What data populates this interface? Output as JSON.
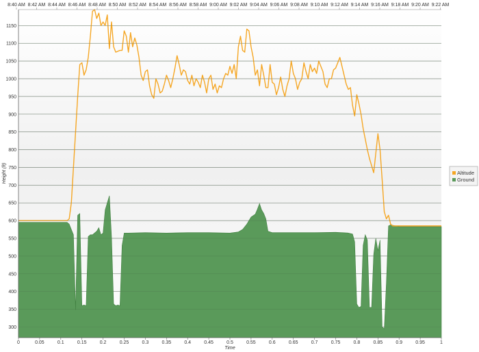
{
  "chart_data": {
    "type": "area",
    "xlabel": "Time",
    "ylabel": "Height (ft)",
    "xlim": [
      0,
      1
    ],
    "ylim": [
      270,
      1195
    ],
    "x_ticks": [
      0,
      0.05,
      0.1,
      0.15,
      0.2,
      0.25,
      0.3,
      0.35,
      0.4,
      0.45,
      0.5,
      0.55,
      0.6,
      0.65,
      0.7,
      0.75,
      0.8,
      0.85,
      0.9,
      0.95,
      1
    ],
    "x_tick_labels": [
      "0",
      "0.05",
      "0.1",
      "0.15",
      "0.2",
      "0.25",
      "0.3",
      "0.35",
      "0.4",
      "0.45",
      "0.5",
      "0.55",
      "0.6",
      "0.65",
      "0.7",
      "0.75",
      "0.8",
      "0.85",
      "0.9",
      "0.95",
      "1"
    ],
    "y_ticks": [
      300,
      350,
      400,
      450,
      500,
      550,
      600,
      650,
      700,
      750,
      800,
      850,
      900,
      950,
      1000,
      1050,
      1100,
      1150
    ],
    "top_axis_labels": [
      "8:40 AM",
      "8:42 AM",
      "8:44 AM",
      "8:46 AM",
      "8:48 AM",
      "8:50 AM",
      "8:52 AM",
      "8:54 AM",
      "8:56 AM",
      "8:58 AM",
      "9:00 AM",
      "9:02 AM",
      "9:04 AM",
      "9:06 AM",
      "9:08 AM",
      "9:10 AM",
      "9:12 AM",
      "9:14 AM",
      "9:16 AM",
      "9:18 AM",
      "9:20 AM",
      "9:22 AM"
    ],
    "grid": true,
    "legend_position": "right",
    "series": [
      {
        "name": "Altitude",
        "kind": "line",
        "color": "#f5a623",
        "points": [
          [
            0,
            600
          ],
          [
            0.115,
            600
          ],
          [
            0.12,
            605
          ],
          [
            0.125,
            650
          ],
          [
            0.13,
            750
          ],
          [
            0.135,
            850
          ],
          [
            0.14,
            950
          ],
          [
            0.145,
            1040
          ],
          [
            0.15,
            1045
          ],
          [
            0.155,
            1010
          ],
          [
            0.16,
            1025
          ],
          [
            0.165,
            1060
          ],
          [
            0.17,
            1120
          ],
          [
            0.175,
            1190
          ],
          [
            0.18,
            1195
          ],
          [
            0.185,
            1170
          ],
          [
            0.19,
            1185
          ],
          [
            0.195,
            1150
          ],
          [
            0.2,
            1160
          ],
          [
            0.205,
            1150
          ],
          [
            0.21,
            1180
          ],
          [
            0.215,
            1085
          ],
          [
            0.22,
            1160
          ],
          [
            0.225,
            1090
          ],
          [
            0.23,
            1075
          ],
          [
            0.24,
            1080
          ],
          [
            0.245,
            1080
          ],
          [
            0.25,
            1135
          ],
          [
            0.255,
            1120
          ],
          [
            0.26,
            1075
          ],
          [
            0.265,
            1130
          ],
          [
            0.27,
            1090
          ],
          [
            0.275,
            1115
          ],
          [
            0.28,
            1095
          ],
          [
            0.285,
            1060
          ],
          [
            0.29,
            1010
          ],
          [
            0.295,
            995
          ],
          [
            0.3,
            1020
          ],
          [
            0.305,
            1025
          ],
          [
            0.31,
            980
          ],
          [
            0.315,
            955
          ],
          [
            0.32,
            945
          ],
          [
            0.325,
            1000
          ],
          [
            0.33,
            985
          ],
          [
            0.335,
            960
          ],
          [
            0.34,
            965
          ],
          [
            0.345,
            985
          ],
          [
            0.35,
            1010
          ],
          [
            0.355,
            995
          ],
          [
            0.36,
            975
          ],
          [
            0.365,
            1000
          ],
          [
            0.37,
            1030
          ],
          [
            0.375,
            1065
          ],
          [
            0.38,
            1040
          ],
          [
            0.385,
            1010
          ],
          [
            0.39,
            1025
          ],
          [
            0.395,
            1020
          ],
          [
            0.4,
            995
          ],
          [
            0.405,
            985
          ],
          [
            0.41,
            1010
          ],
          [
            0.415,
            980
          ],
          [
            0.42,
            1000
          ],
          [
            0.425,
            990
          ],
          [
            0.43,
            975
          ],
          [
            0.435,
            1010
          ],
          [
            0.44,
            990
          ],
          [
            0.445,
            960
          ],
          [
            0.45,
            1000
          ],
          [
            0.455,
            1010
          ],
          [
            0.46,
            970
          ],
          [
            0.465,
            985
          ],
          [
            0.47,
            960
          ],
          [
            0.475,
            980
          ],
          [
            0.48,
            975
          ],
          [
            0.485,
            1000
          ],
          [
            0.49,
            1015
          ],
          [
            0.495,
            1010
          ],
          [
            0.5,
            1035
          ],
          [
            0.505,
            1015
          ],
          [
            0.51,
            1040
          ],
          [
            0.515,
            1000
          ],
          [
            0.52,
            1090
          ],
          [
            0.525,
            1120
          ],
          [
            0.53,
            1080
          ],
          [
            0.535,
            1075
          ],
          [
            0.54,
            1140
          ],
          [
            0.545,
            1135
          ],
          [
            0.55,
            1090
          ],
          [
            0.555,
            1060
          ],
          [
            0.56,
            1010
          ],
          [
            0.565,
            1025
          ],
          [
            0.57,
            980
          ],
          [
            0.575,
            1040
          ],
          [
            0.58,
            1010
          ],
          [
            0.585,
            975
          ],
          [
            0.59,
            975
          ],
          [
            0.595,
            1040
          ],
          [
            0.6,
            990
          ],
          [
            0.605,
            985
          ],
          [
            0.61,
            955
          ],
          [
            0.615,
            975
          ],
          [
            0.62,
            1005
          ],
          [
            0.625,
            970
          ],
          [
            0.63,
            950
          ],
          [
            0.635,
            980
          ],
          [
            0.64,
            1000
          ],
          [
            0.645,
            1050
          ],
          [
            0.65,
            1015
          ],
          [
            0.655,
            1000
          ],
          [
            0.66,
            970
          ],
          [
            0.665,
            990
          ],
          [
            0.67,
            1000
          ],
          [
            0.675,
            1045
          ],
          [
            0.68,
            1020
          ],
          [
            0.685,
            1000
          ],
          [
            0.69,
            1040
          ],
          [
            0.695,
            1020
          ],
          [
            0.7,
            1030
          ],
          [
            0.705,
            1015
          ],
          [
            0.71,
            1050
          ],
          [
            0.715,
            1035
          ],
          [
            0.72,
            1020
          ],
          [
            0.725,
            985
          ],
          [
            0.73,
            975
          ],
          [
            0.735,
            1000
          ],
          [
            0.74,
            1000
          ],
          [
            0.745,
            1025
          ],
          [
            0.75,
            1030
          ],
          [
            0.755,
            1045
          ],
          [
            0.76,
            1060
          ],
          [
            0.765,
            1035
          ],
          [
            0.77,
            1010
          ],
          [
            0.775,
            985
          ],
          [
            0.78,
            970
          ],
          [
            0.785,
            975
          ],
          [
            0.79,
            925
          ],
          [
            0.795,
            895
          ],
          [
            0.8,
            955
          ],
          [
            0.805,
            930
          ],
          [
            0.81,
            900
          ],
          [
            0.815,
            860
          ],
          [
            0.82,
            830
          ],
          [
            0.825,
            800
          ],
          [
            0.83,
            775
          ],
          [
            0.835,
            755
          ],
          [
            0.84,
            735
          ],
          [
            0.845,
            790
          ],
          [
            0.85,
            845
          ],
          [
            0.855,
            800
          ],
          [
            0.86,
            715
          ],
          [
            0.865,
            625
          ],
          [
            0.87,
            605
          ],
          [
            0.875,
            615
          ],
          [
            0.88,
            590
          ],
          [
            0.885,
            585
          ],
          [
            0.9,
            585
          ],
          [
            0.95,
            585
          ],
          [
            1,
            585
          ]
        ]
      },
      {
        "name": "Ground",
        "kind": "area",
        "color": "#5a9a5a",
        "points": [
          [
            0,
            595
          ],
          [
            0.115,
            595
          ],
          [
            0.12,
            590
          ],
          [
            0.125,
            575
          ],
          [
            0.13,
            560
          ],
          [
            0.135,
            348
          ],
          [
            0.14,
            615
          ],
          [
            0.145,
            620
          ],
          [
            0.15,
            360
          ],
          [
            0.155,
            362
          ],
          [
            0.16,
            360
          ],
          [
            0.165,
            555
          ],
          [
            0.17,
            560
          ],
          [
            0.175,
            560
          ],
          [
            0.18,
            565
          ],
          [
            0.185,
            570
          ],
          [
            0.19,
            580
          ],
          [
            0.195,
            560
          ],
          [
            0.2,
            565
          ],
          [
            0.205,
            630
          ],
          [
            0.21,
            650
          ],
          [
            0.215,
            670
          ],
          [
            0.22,
            555
          ],
          [
            0.225,
            365
          ],
          [
            0.23,
            360
          ],
          [
            0.235,
            362
          ],
          [
            0.24,
            360
          ],
          [
            0.245,
            530
          ],
          [
            0.25,
            565
          ],
          [
            0.26,
            565
          ],
          [
            0.3,
            566
          ],
          [
            0.35,
            565
          ],
          [
            0.4,
            566
          ],
          [
            0.45,
            566
          ],
          [
            0.5,
            565
          ],
          [
            0.52,
            568
          ],
          [
            0.53,
            575
          ],
          [
            0.54,
            590
          ],
          [
            0.55,
            610
          ],
          [
            0.56,
            618
          ],
          [
            0.565,
            632
          ],
          [
            0.57,
            648
          ],
          [
            0.575,
            630
          ],
          [
            0.58,
            620
          ],
          [
            0.585,
            605
          ],
          [
            0.59,
            570
          ],
          [
            0.6,
            566
          ],
          [
            0.65,
            566
          ],
          [
            0.7,
            566
          ],
          [
            0.75,
            567
          ],
          [
            0.78,
            565
          ],
          [
            0.79,
            562
          ],
          [
            0.795,
            540
          ],
          [
            0.8,
            365
          ],
          [
            0.805,
            355
          ],
          [
            0.81,
            358
          ],
          [
            0.815,
            530
          ],
          [
            0.82,
            560
          ],
          [
            0.825,
            545
          ],
          [
            0.83,
            355
          ],
          [
            0.835,
            355
          ],
          [
            0.84,
            505
          ],
          [
            0.845,
            550
          ],
          [
            0.85,
            515
          ],
          [
            0.855,
            545
          ],
          [
            0.86,
            300
          ],
          [
            0.865,
            295
          ],
          [
            0.87,
            425
          ],
          [
            0.875,
            585
          ],
          [
            0.88,
            588
          ],
          [
            0.9,
            583
          ],
          [
            0.95,
            583
          ],
          [
            1,
            583
          ]
        ]
      }
    ]
  },
  "colors": {
    "altitude_line": "#f5a623",
    "ground_fill": "#5a9a5a",
    "ground_stroke": "#3f7f3f",
    "grid": "#777777",
    "plot_bg_top": "#f2f2f2",
    "plot_bg_bottom": "#ffffff"
  }
}
